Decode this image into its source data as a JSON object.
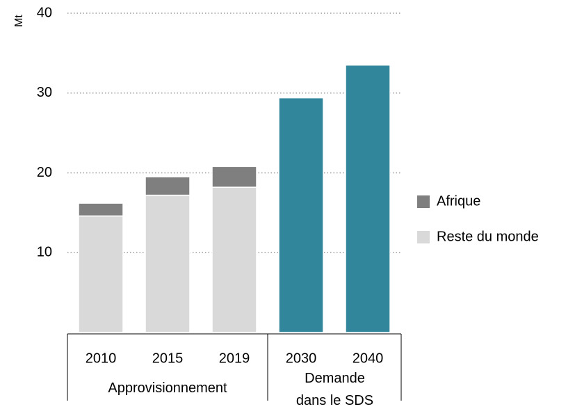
{
  "chart_data": {
    "type": "stacked_bar",
    "y_label": "Mt",
    "categories": [
      "2010",
      "2015",
      "2019",
      "2030",
      "2040"
    ],
    "groups": [
      "Approvisionnement",
      "Demande dans le SDS"
    ],
    "series": [
      {
        "name": "Reste du monde",
        "color": "#d9d9d9",
        "values": [
          14.6,
          17.2,
          18.2,
          null,
          null
        ]
      },
      {
        "name": "Afrique",
        "color": "#7f7f7f",
        "values": [
          1.6,
          2.3,
          2.6,
          null,
          null
        ]
      },
      {
        "color": "#31869b",
        "values": [
          null,
          null,
          null,
          29.4,
          33.5
        ]
      }
    ],
    "ylim": [
      0,
      40
    ],
    "yticks": [
      10,
      20,
      30,
      40
    ],
    "grid": true
  }
}
